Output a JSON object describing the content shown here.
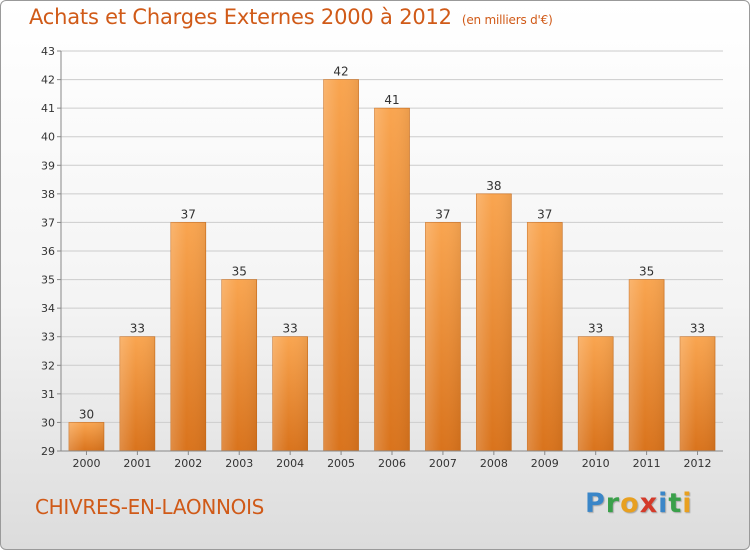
{
  "header": {
    "title": "Achats et Charges Externes 2000 à 2012",
    "unit": "(en milliers d'€)"
  },
  "footer": {
    "location": "CHIVRES-EN-LAONNOIS",
    "logo_letters": [
      {
        "ch": "P",
        "color": "#3a86c8"
      },
      {
        "ch": "r",
        "color": "#3aa04a"
      },
      {
        "ch": "o",
        "color": "#e8a020"
      },
      {
        "ch": "x",
        "color": "#d43a2a"
      },
      {
        "ch": "i",
        "color": "#3a86c8"
      },
      {
        "ch": "t",
        "color": "#3aa04a"
      },
      {
        "ch": "i",
        "color": "#e8a020"
      }
    ]
  },
  "colors": {
    "bar_light": "#f9a550",
    "bar_dark": "#d9731c",
    "grid": "#cccccc",
    "axis": "#888888"
  },
  "chart_data": {
    "type": "bar",
    "title": "Achats et Charges Externes 2000 à 2012",
    "subtitle": "(en milliers d'€)",
    "xlabel": "",
    "ylabel": "",
    "categories": [
      "2000",
      "2001",
      "2002",
      "2003",
      "2004",
      "2005",
      "2006",
      "2007",
      "2008",
      "2009",
      "2010",
      "2011",
      "2012"
    ],
    "values": [
      30,
      33,
      37,
      35,
      33,
      42,
      41,
      37,
      38,
      37,
      33,
      35,
      33
    ],
    "ylim": [
      29,
      43
    ],
    "yticks": [
      29,
      30,
      31,
      32,
      33,
      34,
      35,
      36,
      37,
      38,
      39,
      40,
      41,
      42,
      43
    ],
    "grid": true,
    "data_labels": true
  }
}
